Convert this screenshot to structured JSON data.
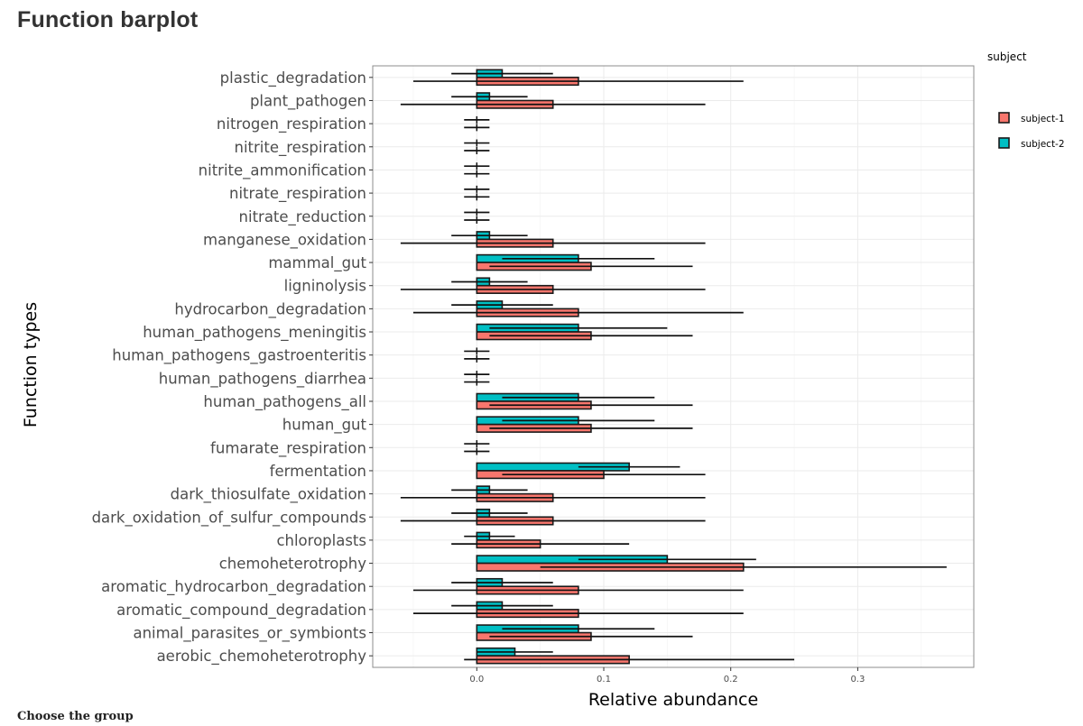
{
  "page": {
    "title": "Function barplot",
    "choose_group_label": "Choose the group"
  },
  "colors": {
    "subject-1": "#F8766D",
    "subject-2": "#00BFC4"
  },
  "chart_data": {
    "type": "bar",
    "orientation": "horizontal",
    "title": "",
    "xlabel": "Relative abundance",
    "ylabel": "Function types",
    "xlim": [
      -0.08,
      0.39
    ],
    "xticks": [
      0.0,
      0.1,
      0.2,
      0.3
    ],
    "xtick_labels": [
      "0.0",
      "0.1",
      "0.2",
      "0.3"
    ],
    "grid": true,
    "legend": {
      "title": "subject",
      "position": "right",
      "entries": [
        "subject-1",
        "subject-2"
      ]
    },
    "categories": [
      "plastic_degradation",
      "plant_pathogen",
      "nitrogen_respiration",
      "nitrite_respiration",
      "nitrite_ammonification",
      "nitrate_respiration",
      "nitrate_reduction",
      "manganese_oxidation",
      "mammal_gut",
      "ligninolysis",
      "hydrocarbon_degradation",
      "human_pathogens_meningitis",
      "human_pathogens_gastroenteritis",
      "human_pathogens_diarrhea",
      "human_pathogens_all",
      "human_gut",
      "fumarate_respiration",
      "fermentation",
      "dark_thiosulfate_oxidation",
      "dark_oxidation_of_sulfur_compounds",
      "chloroplasts",
      "chemoheterotrophy",
      "aromatic_hydrocarbon_degradation",
      "aromatic_compound_degradation",
      "animal_parasites_or_symbionts",
      "aerobic_chemoheterotrophy"
    ],
    "series": [
      {
        "name": "subject-1",
        "values": [
          0.08,
          0.06,
          0,
          0,
          0,
          0,
          0,
          0.06,
          0.09,
          0.06,
          0.08,
          0.09,
          0,
          0,
          0.09,
          0.09,
          0,
          0.1,
          0.06,
          0.06,
          0.05,
          0.21,
          0.08,
          0.08,
          0.09,
          0.12
        ],
        "error_min": [
          -0.05,
          -0.06,
          -0.01,
          -0.01,
          -0.01,
          -0.01,
          -0.01,
          -0.06,
          0.01,
          -0.06,
          -0.05,
          0.01,
          -0.01,
          -0.01,
          0.01,
          0.01,
          -0.01,
          0.02,
          -0.06,
          -0.06,
          -0.02,
          0.05,
          -0.05,
          -0.05,
          0.01,
          -0.01
        ],
        "error_max": [
          0.21,
          0.18,
          0.01,
          0.01,
          0.01,
          0.01,
          0.01,
          0.18,
          0.17,
          0.18,
          0.21,
          0.17,
          0.01,
          0.01,
          0.17,
          0.17,
          0.01,
          0.18,
          0.18,
          0.18,
          0.12,
          0.37,
          0.21,
          0.21,
          0.17,
          0.25
        ]
      },
      {
        "name": "subject-2",
        "values": [
          0.02,
          0.01,
          0,
          0,
          0,
          0,
          0,
          0.01,
          0.08,
          0.01,
          0.02,
          0.08,
          0,
          0,
          0.08,
          0.08,
          0,
          0.12,
          0.01,
          0.01,
          0.01,
          0.15,
          0.02,
          0.02,
          0.08,
          0.03
        ],
        "error_min": [
          -0.02,
          -0.02,
          -0.01,
          -0.01,
          -0.01,
          -0.01,
          -0.01,
          -0.02,
          0.02,
          -0.02,
          -0.02,
          0.01,
          -0.01,
          -0.01,
          0.02,
          0.02,
          -0.01,
          0.08,
          -0.02,
          -0.02,
          -0.01,
          0.08,
          -0.02,
          -0.02,
          0.02,
          0.0
        ],
        "error_max": [
          0.06,
          0.04,
          0.01,
          0.01,
          0.01,
          0.01,
          0.01,
          0.04,
          0.14,
          0.04,
          0.06,
          0.15,
          0.01,
          0.01,
          0.14,
          0.14,
          0.01,
          0.16,
          0.04,
          0.04,
          0.03,
          0.22,
          0.06,
          0.06,
          0.14,
          0.06
        ]
      }
    ]
  }
}
